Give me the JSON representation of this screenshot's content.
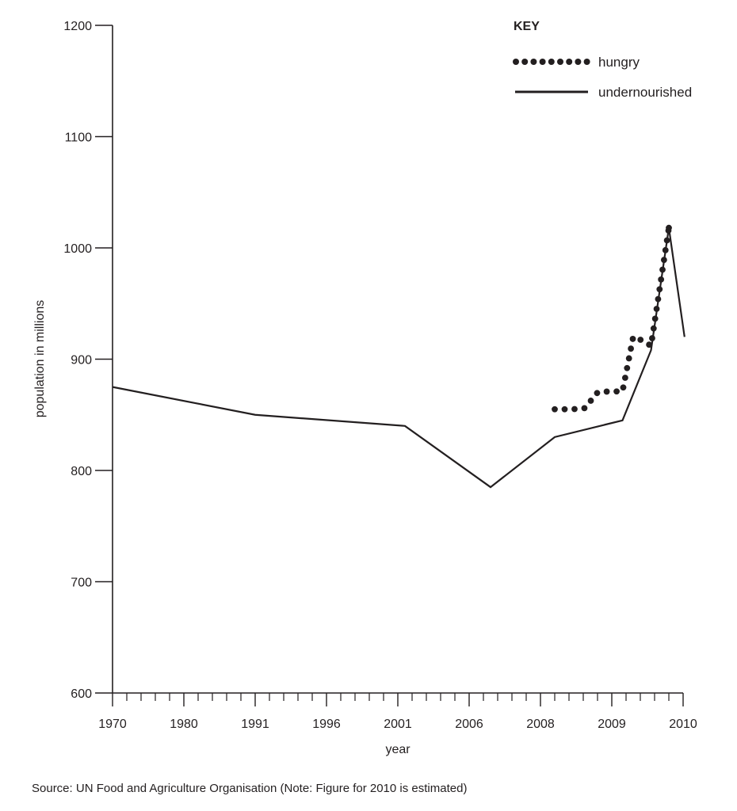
{
  "chart_data": {
    "type": "line",
    "xlabel": "year",
    "ylabel": "population in millions",
    "ylim": [
      600,
      1200
    ],
    "y_ticks": [
      600,
      700,
      800,
      900,
      1000,
      1100,
      1200
    ],
    "x_ticks": [
      "1970",
      "1980",
      "1991",
      "1996",
      "2001",
      "2006",
      "2008",
      "2009",
      "2010"
    ],
    "x_ticks_at": [
      0,
      1,
      2,
      3,
      4,
      5,
      6,
      7,
      8
    ],
    "legend_title": "KEY",
    "legend_position": "top-right",
    "grid": false,
    "series": [
      {
        "name": "undernourished",
        "style": "solid",
        "points": [
          {
            "x": 0,
            "y": 875
          },
          {
            "x": 2,
            "y": 850
          },
          {
            "x": 4.1,
            "y": 840
          },
          {
            "x": 5.3,
            "y": 785
          },
          {
            "x": 6.2,
            "y": 830
          },
          {
            "x": 7.15,
            "y": 845
          },
          {
            "x": 7.55,
            "y": 908
          },
          {
            "x": 7.8,
            "y": 1018
          },
          {
            "x": 8.02,
            "y": 920
          }
        ]
      },
      {
        "name": "hungry",
        "style": "dotted",
        "points": [
          {
            "x": 6.2,
            "y": 855
          },
          {
            "x": 6.45,
            "y": 855
          },
          {
            "x": 6.62,
            "y": 856
          },
          {
            "x": 6.8,
            "y": 870
          },
          {
            "x": 6.95,
            "y": 871
          },
          {
            "x": 7.15,
            "y": 871
          },
          {
            "x": 7.3,
            "y": 920
          },
          {
            "x": 7.42,
            "y": 917
          },
          {
            "x": 7.55,
            "y": 912
          },
          {
            "x": 7.8,
            "y": 1018
          }
        ]
      }
    ]
  },
  "source_note": "Source: UN Food and Agriculture Organisation (Note: Figure for 2010 is estimated)"
}
